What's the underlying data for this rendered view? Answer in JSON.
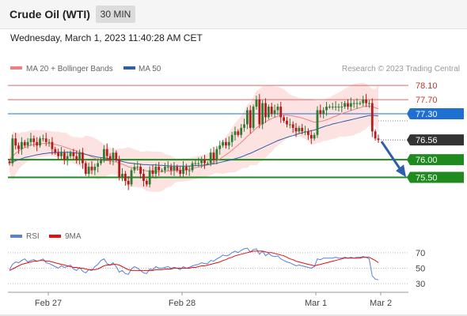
{
  "header": {
    "instrument": "Crude Oil (WTI)",
    "timeframe": "30 MIN",
    "timestamp": "Wednesday, March 1, 2023 11:40:28 AM CET"
  },
  "legend": {
    "ma20_label": "MA 20 + Bollinger Bands",
    "ma50_label": "MA 50",
    "ma20_color": "#f08080",
    "ma50_color": "#2f5fa8",
    "credit": "Research © 2023 Trading Central"
  },
  "rsi_legend": {
    "rsi_label": "RSI",
    "ma_label": "9MA",
    "rsi_color": "#5a7fd6",
    "ma_color": "#e01010"
  },
  "colors": {
    "up_candle": "#2e7d32",
    "down_candle": "#b71c1c",
    "band_fill": "#fde2e2",
    "support_green": "#1f8b1f",
    "pivot_blue": "#1f6fd1",
    "resistance_red": "#e06666",
    "last_price_bg": "#333333",
    "arrow_blue": "#2f5fa8"
  },
  "chart_data": [
    {
      "type": "candlestick",
      "ylim": [
        74.55,
        78.35
      ],
      "levels": [
        {
          "value": 78.1,
          "label": "78.10",
          "kind": "resistance"
        },
        {
          "value": 77.7,
          "label": "77.70",
          "kind": "resistance"
        },
        {
          "value": 77.3,
          "label": "77.30",
          "kind": "pivot"
        },
        {
          "value": 76.56,
          "label": "76.56",
          "kind": "last"
        },
        {
          "value": 76.0,
          "label": "76.00",
          "kind": "support"
        },
        {
          "value": 75.5,
          "label": "75.50",
          "kind": "support"
        }
      ],
      "x_ticks": [
        "Feb 27",
        "Feb 28",
        "Mar 1",
        "Mar 2"
      ],
      "close": [
        75.9,
        76.6,
        76.4,
        76.3,
        76.5,
        76.4,
        76.5,
        76.6,
        76.5,
        76.4,
        76.6,
        76.6,
        76.5,
        76.5,
        76.3,
        76.2,
        76.1,
        76.2,
        76.0,
        76.1,
        76.2,
        76.1,
        76.0,
        76.2,
        75.9,
        75.6,
        75.8,
        75.7,
        75.8,
        75.9,
        76.0,
        76.3,
        76.1,
        76.0,
        76.2,
        76.0,
        75.5,
        75.6,
        75.4,
        75.3,
        75.7,
        75.8,
        75.8,
        75.6,
        75.4,
        75.3,
        75.7,
        75.6,
        75.8,
        75.7,
        75.7,
        75.8,
        75.8,
        75.7,
        75.8,
        75.7,
        75.6,
        75.8,
        75.7,
        75.7,
        75.9,
        75.9,
        75.9,
        76.0,
        75.9,
        75.9,
        76.2,
        76.0,
        76.3,
        76.4,
        76.5,
        76.4,
        76.5,
        76.7,
        76.8,
        76.7,
        76.9,
        77.0,
        77.4,
        76.9,
        77.5,
        77.7,
        77.0,
        77.6,
        77.2,
        77.5,
        77.3,
        77.4,
        77.5,
        77.2,
        77.1,
        77.0,
        77.0,
        76.9,
        76.8,
        76.9,
        76.8,
        76.8,
        76.7,
        76.6,
        76.7,
        77.4,
        77.3,
        77.4,
        77.5,
        77.5,
        77.5,
        77.5,
        77.5,
        77.5,
        77.6,
        77.5,
        77.6,
        77.6,
        77.6,
        77.6,
        77.7,
        77.6,
        77.6,
        76.8,
        76.6,
        76.56
      ],
      "ma50": [
        75.92,
        75.94,
        75.97,
        76.0,
        76.03,
        76.06,
        76.08,
        76.1,
        76.12,
        76.14,
        76.15,
        76.17,
        76.18,
        76.19,
        76.2,
        76.2,
        76.21,
        76.21,
        76.21,
        76.21,
        76.21,
        76.2,
        76.19,
        76.18,
        76.17,
        76.15,
        76.13,
        76.11,
        76.09,
        76.07,
        76.06,
        76.05,
        76.04,
        76.02,
        76.01,
        75.99,
        75.97,
        75.95,
        75.93,
        75.91,
        75.9,
        75.89,
        75.88,
        75.87,
        75.86,
        75.86,
        75.85,
        75.85,
        75.85,
        75.84,
        75.84,
        75.83,
        75.83,
        75.82,
        75.82,
        75.82,
        75.82,
        75.82,
        75.82,
        75.82,
        75.83,
        75.83,
        75.84,
        75.84,
        75.85,
        75.86,
        75.87,
        75.88,
        75.9,
        75.92,
        75.94,
        75.96,
        75.98,
        76.0,
        76.03,
        76.05,
        76.08,
        76.11,
        76.15,
        76.18,
        76.22,
        76.26,
        76.3,
        76.34,
        76.38,
        76.42,
        76.46,
        76.5,
        76.54,
        76.57,
        76.6,
        76.63,
        76.66,
        76.68,
        76.71,
        76.74,
        76.76,
        76.78,
        76.8,
        76.82,
        76.84,
        76.87,
        76.9,
        76.93,
        76.96,
        76.98,
        77.01,
        77.03,
        77.05,
        77.07,
        77.09,
        77.11,
        77.13,
        77.15,
        77.17,
        77.19,
        77.21,
        77.23,
        77.25,
        77.25,
        77.25,
        77.24
      ],
      "ma20": [
        76.0,
        76.1,
        76.18,
        76.24,
        76.3,
        76.34,
        76.38,
        76.41,
        76.43,
        76.44,
        76.45,
        76.46,
        76.46,
        76.46,
        76.45,
        76.43,
        76.41,
        76.39,
        76.36,
        76.33,
        76.3,
        76.27,
        76.24,
        76.22,
        76.19,
        76.15,
        76.12,
        76.08,
        76.04,
        76.0,
        75.98,
        75.97,
        75.97,
        75.96,
        75.95,
        75.93,
        75.9,
        75.87,
        75.84,
        75.8,
        75.78,
        75.76,
        75.74,
        75.72,
        75.7,
        75.68,
        75.67,
        75.66,
        75.66,
        75.66,
        75.66,
        75.67,
        75.68,
        75.68,
        75.69,
        75.7,
        75.7,
        75.71,
        75.72,
        75.73,
        75.75,
        75.77,
        75.79,
        75.81,
        75.83,
        75.85,
        75.88,
        75.92,
        75.97,
        76.02,
        76.08,
        76.14,
        76.2,
        76.27,
        76.34,
        76.41,
        76.49,
        76.57,
        76.66,
        76.73,
        76.81,
        76.9,
        76.96,
        77.02,
        77.07,
        77.12,
        77.16,
        77.2,
        77.23,
        77.25,
        77.26,
        77.26,
        77.25,
        77.24,
        77.22,
        77.2,
        77.18,
        77.15,
        77.12,
        77.09,
        77.06,
        77.07,
        77.08,
        77.1,
        77.13,
        77.16,
        77.2,
        77.23,
        77.27,
        77.3,
        77.33,
        77.36,
        77.39,
        77.42,
        77.45,
        77.47,
        77.5,
        77.51,
        77.52,
        77.5,
        77.47,
        77.44
      ],
      "arrow": {
        "from_value": 76.56,
        "to_value": 75.55
      }
    },
    {
      "type": "line",
      "title": "RSI",
      "ylim": [
        25,
        78
      ],
      "y_ticks": [
        70,
        50,
        30
      ],
      "series": [
        {
          "name": "RSI",
          "values": [
            48,
            55,
            58,
            57,
            60,
            62,
            58,
            60,
            61,
            59,
            60,
            62,
            57,
            56,
            54,
            52,
            50,
            53,
            51,
            52,
            54,
            49,
            47,
            51,
            46,
            44,
            48,
            47,
            52,
            55,
            60,
            62,
            56,
            54,
            57,
            52,
            45,
            47,
            43,
            42,
            49,
            52,
            50,
            47,
            44,
            43,
            49,
            48,
            52,
            50,
            50,
            51,
            52,
            50,
            51,
            50,
            48,
            52,
            50,
            51,
            53,
            54,
            55,
            57,
            56,
            56,
            60,
            59,
            62,
            64,
            67,
            66,
            67,
            70,
            72,
            70,
            73,
            75,
            76,
            71,
            74,
            75,
            68,
            72,
            66,
            69,
            66,
            65,
            66,
            62,
            60,
            58,
            57,
            55,
            53,
            54,
            53,
            52,
            51,
            50,
            52,
            62,
            61,
            63,
            63,
            63,
            63,
            64,
            63,
            63,
            64,
            63,
            64,
            63,
            64,
            64,
            65,
            64,
            62,
            40,
            36,
            35
          ]
        },
        {
          "name": "9MA",
          "values": [
            47,
            49,
            51,
            53,
            55,
            56,
            57,
            58,
            59,
            59,
            60,
            60,
            59,
            59,
            58,
            57,
            56,
            55,
            54,
            53,
            52,
            51,
            51,
            50,
            50,
            49,
            48,
            48,
            48,
            49,
            51,
            53,
            54,
            54,
            55,
            55,
            54,
            52,
            50,
            48,
            47,
            47,
            47,
            47,
            47,
            47,
            47,
            47,
            48,
            48,
            48,
            49,
            49,
            49,
            50,
            50,
            50,
            50,
            50,
            50,
            51,
            51,
            52,
            53,
            53,
            54,
            55,
            56,
            57,
            58,
            60,
            61,
            63,
            64,
            66,
            67,
            68,
            69,
            70,
            71,
            72,
            72,
            72,
            72,
            71,
            70,
            70,
            69,
            68,
            67,
            66,
            64,
            62,
            61,
            59,
            58,
            57,
            56,
            55,
            54,
            53,
            54,
            55,
            56,
            57,
            58,
            59,
            60,
            61,
            62,
            63,
            63,
            63,
            63,
            63,
            63,
            64,
            64,
            64,
            62,
            60,
            57
          ]
        }
      ]
    }
  ]
}
